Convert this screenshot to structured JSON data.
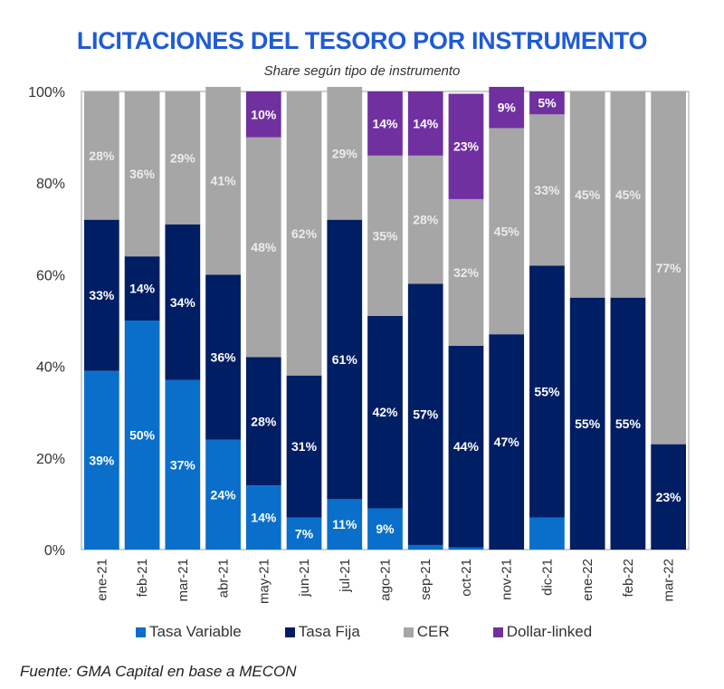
{
  "title": "LICITACIONES DEL TESORO POR INSTRUMENTO",
  "subtitle": "Share según tipo de instrumento",
  "source": "Fuente: GMA Capital en base a MECON",
  "colors": {
    "Tasa Variable": "#0a6fcb",
    "Tasa Fija": "#001e64",
    "CER": "#a6a6a6",
    "Dollar-linked": "#7030a0"
  },
  "chart_data": {
    "type": "bar",
    "stacked": true,
    "percent": true,
    "title": "LICITACIONES DEL TESORO POR INSTRUMENTO",
    "subtitle": "Share según tipo de instrumento",
    "xlabel": "",
    "ylabel": "",
    "ylim": [
      0,
      100
    ],
    "yticks": [
      "0%",
      "20%",
      "40%",
      "60%",
      "80%",
      "100%"
    ],
    "grid": false,
    "legend_position": "bottom",
    "categories": [
      "ene-21",
      "feb-21",
      "mar-21",
      "abr-21",
      "may-21",
      "jun-21",
      "jul-21",
      "ago-21",
      "sep-21",
      "oct-21",
      "nov-21",
      "dic-21",
      "ene-22",
      "feb-22",
      "mar-22"
    ],
    "series": [
      {
        "name": "Tasa Variable",
        "values": [
          39,
          50,
          37,
          24,
          14,
          7,
          11,
          9,
          1,
          0.5,
          0,
          7,
          0,
          0,
          0
        ],
        "labels": [
          "39%",
          "50%",
          "37%",
          "24%",
          "14%",
          "7%",
          "11%",
          "9%",
          "",
          "",
          "",
          "",
          "",
          "",
          ""
        ]
      },
      {
        "name": "Tasa Fija",
        "values": [
          33,
          14,
          34,
          36,
          28,
          31,
          61,
          42,
          57,
          44,
          47,
          55,
          55,
          55,
          23
        ],
        "labels": [
          "33%",
          "14%",
          "34%",
          "36%",
          "28%",
          "31%",
          "61%",
          "42%",
          "57%",
          "44%",
          "47%",
          "55%",
          "55%",
          "55%",
          "23%"
        ]
      },
      {
        "name": "CER",
        "values": [
          28,
          36,
          29,
          41,
          48,
          62,
          29,
          35,
          28,
          32,
          45,
          33,
          45,
          45,
          77
        ],
        "labels": [
          "28%",
          "36%",
          "29%",
          "41%",
          "48%",
          "62%",
          "29%",
          "35%",
          "28%",
          "32%",
          "45%",
          "33%",
          "45%",
          "45%",
          "77%"
        ]
      },
      {
        "name": "Dollar-linked",
        "values": [
          0,
          0,
          0,
          0,
          10,
          0,
          0,
          14,
          14,
          23,
          9,
          5,
          0,
          0,
          0
        ],
        "labels": [
          "",
          "",
          "",
          "",
          "10%",
          "",
          "",
          "14%",
          "14%",
          "23%",
          "9%",
          "5%",
          "",
          "",
          ""
        ]
      }
    ]
  }
}
